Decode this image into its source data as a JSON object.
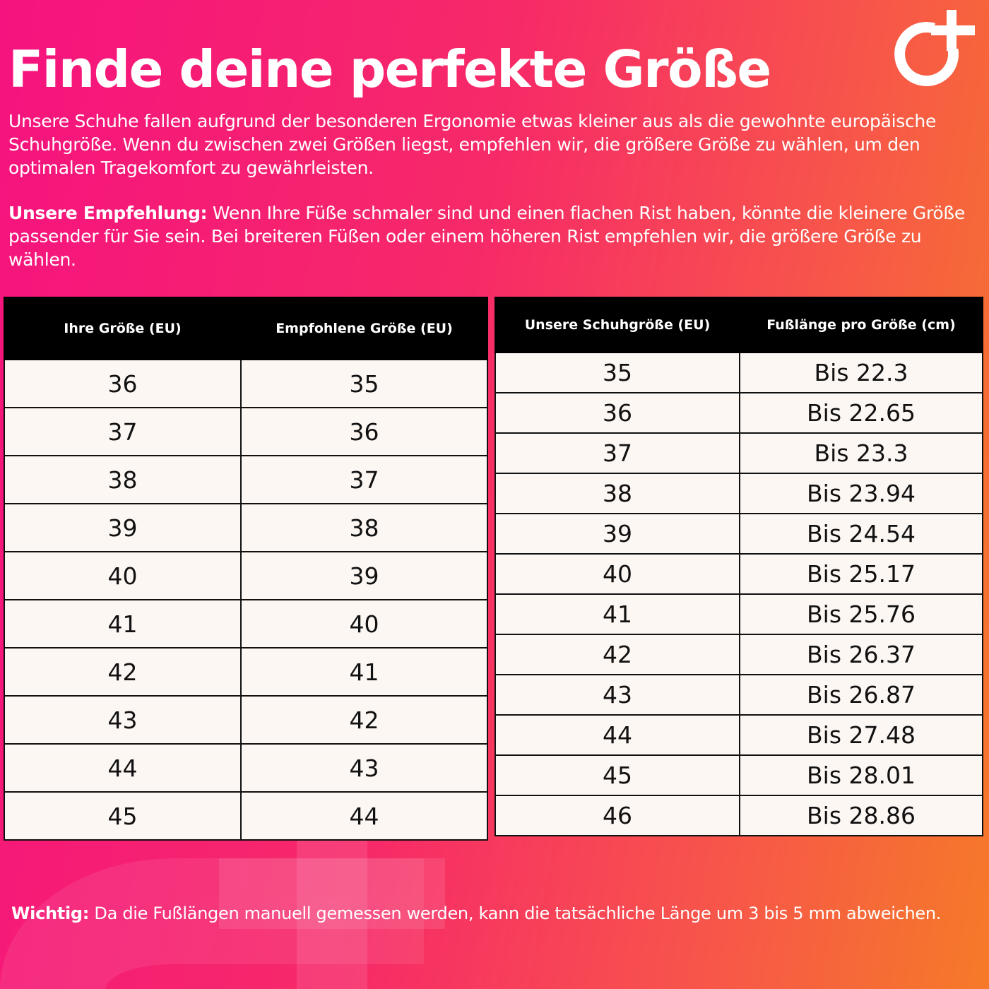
{
  "title": "Finde deine perfekte Größe",
  "intro": "Unsere Schuhe fallen aufgrund der besonderen Ergonomie etwas kleiner aus als die gewohnte europäische Schuhgröße. Wenn du zwischen zwei Größen liegst, empfehlen wir, die größere Größe zu wählen, um den optimalen Tragekomfort zu gewährleisten.",
  "recommendation": {
    "label": "Unsere Empfehlung:",
    "text": " Wenn Ihre Füße schmaler sind und einen flachen Rist haben, könnte die kleinere Größe passender für Sie sein. Bei breiteren Füßen oder einem höheren Rist empfehlen wir, die größere Größe zu wählen."
  },
  "note": {
    "label": "Wichtig:",
    "text": " Da die Fußlängen manuell gemessen werden, kann die tatsächliche Länge um 3 bis 5 mm abweichen."
  },
  "table_recommend": {
    "headers": [
      "Ihre Größe (EU)",
      "Empfohlene Größe (EU)"
    ],
    "rows": [
      [
        "36",
        "35"
      ],
      [
        "37",
        "36"
      ],
      [
        "38",
        "37"
      ],
      [
        "39",
        "38"
      ],
      [
        "40",
        "39"
      ],
      [
        "41",
        "40"
      ],
      [
        "42",
        "41"
      ],
      [
        "43",
        "42"
      ],
      [
        "44",
        "43"
      ],
      [
        "45",
        "44"
      ]
    ]
  },
  "table_length": {
    "headers": [
      "Unsere Schuhgröße (EU)",
      "Fußlänge pro Größe (cm)"
    ],
    "rows": [
      [
        "35",
        "Bis 22.3"
      ],
      [
        "36",
        "Bis 22.65"
      ],
      [
        "37",
        "Bis 23.3"
      ],
      [
        "38",
        "Bis 23.94"
      ],
      [
        "39",
        "Bis 24.54"
      ],
      [
        "40",
        "Bis 25.17"
      ],
      [
        "41",
        "Bis 25.76"
      ],
      [
        "42",
        "Bis 26.37"
      ],
      [
        "43",
        "Bis 26.87"
      ],
      [
        "44",
        "Bis 27.48"
      ],
      [
        "45",
        "Bis 28.01"
      ],
      [
        "46",
        "Bis 28.86"
      ]
    ]
  },
  "colors": {
    "gradient_start": "#f5137f",
    "gradient_end": "#f67a28",
    "header": "#000000",
    "cell": "#fdf7f4"
  },
  "logo_icon": "circle-plus-logo"
}
